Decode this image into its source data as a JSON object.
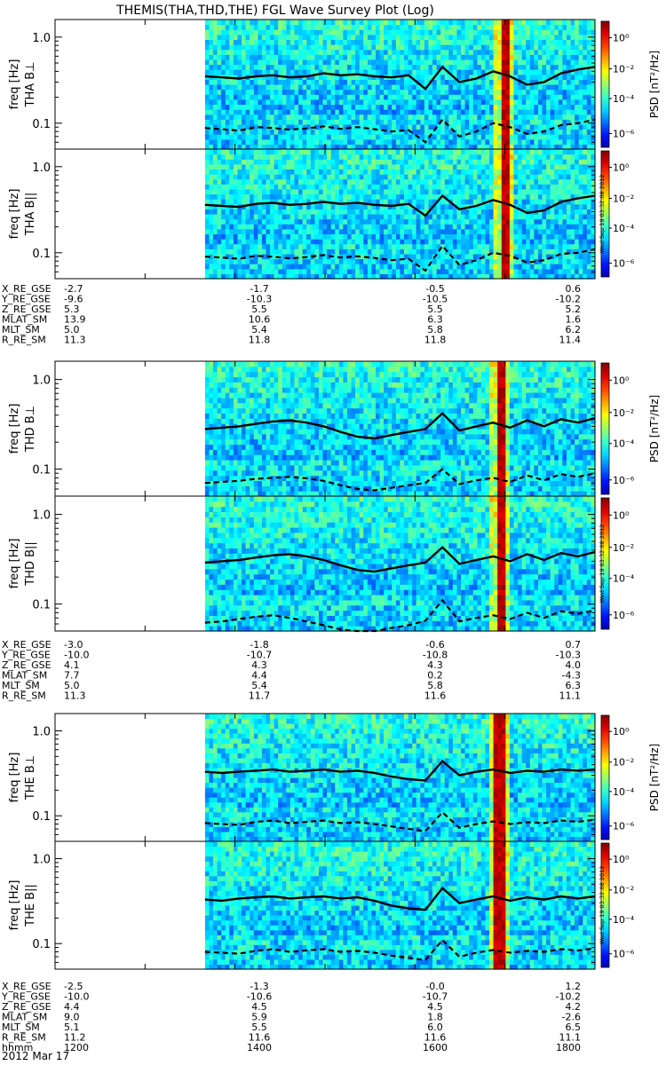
{
  "chart_data": {
    "type": "heatmap",
    "title": "THEMIS(THA,THD,THE) FGL Wave Survey Plot (Log)",
    "ylabel_unit": "freq [Hz]",
    "y_ticks": [
      "1.0",
      "0.1"
    ],
    "ylim": [
      0.05,
      1.6
    ],
    "colorbar_label": "PSD [nT²/Hz]",
    "colorbar_ticks": [
      "10⁰",
      "10⁻²",
      "10⁻⁴",
      "10⁻⁶"
    ],
    "panels": [
      {
        "label": "THA B⊥",
        "probe": "THA",
        "data_start_hhmm": 1340,
        "burst_hhmm": 1658,
        "solid_line_hz": [
          0.35,
          0.34,
          0.33,
          0.35,
          0.36,
          0.34,
          0.35,
          0.38,
          0.36,
          0.37,
          0.35,
          0.34,
          0.36,
          0.25,
          0.45,
          0.3,
          0.33,
          0.4,
          0.35,
          0.28,
          0.3,
          0.38,
          0.42,
          0.45
        ],
        "dashed_line_hz": [
          0.088,
          0.085,
          0.082,
          0.09,
          0.088,
          0.084,
          0.087,
          0.092,
          0.086,
          0.09,
          0.085,
          0.08,
          0.083,
          0.06,
          0.11,
          0.07,
          0.08,
          0.1,
          0.09,
          0.075,
          0.08,
          0.095,
          0.1,
          0.11
        ]
      },
      {
        "label": "THA B||",
        "probe": "THA",
        "data_start_hhmm": 1340,
        "burst_hhmm": 1658,
        "solid_line_hz": [
          0.36,
          0.35,
          0.34,
          0.37,
          0.38,
          0.36,
          0.37,
          0.39,
          0.37,
          0.38,
          0.36,
          0.35,
          0.37,
          0.27,
          0.46,
          0.32,
          0.35,
          0.41,
          0.36,
          0.29,
          0.31,
          0.39,
          0.43,
          0.46
        ],
        "dashed_line_hz": [
          0.09,
          0.088,
          0.085,
          0.092,
          0.09,
          0.086,
          0.089,
          0.094,
          0.088,
          0.091,
          0.087,
          0.082,
          0.085,
          0.062,
          0.12,
          0.072,
          0.082,
          0.1,
          0.092,
          0.077,
          0.082,
          0.097,
          0.1,
          0.11
        ]
      },
      {
        "label": "THD B⊥",
        "probe": "THD",
        "data_start_hhmm": 1340,
        "burst_hhmm": 1656,
        "solid_line_hz": [
          0.28,
          0.29,
          0.3,
          0.32,
          0.34,
          0.35,
          0.33,
          0.3,
          0.26,
          0.23,
          0.22,
          0.24,
          0.26,
          0.28,
          0.42,
          0.27,
          0.3,
          0.33,
          0.29,
          0.35,
          0.3,
          0.36,
          0.33,
          0.37
        ],
        "dashed_line_hz": [
          0.07,
          0.072,
          0.074,
          0.078,
          0.08,
          0.082,
          0.079,
          0.074,
          0.066,
          0.06,
          0.058,
          0.062,
          0.066,
          0.07,
          0.1,
          0.068,
          0.075,
          0.08,
          0.072,
          0.085,
          0.075,
          0.088,
          0.082,
          0.09
        ]
      },
      {
        "label": "THD B||",
        "probe": "THD",
        "data_start_hhmm": 1340,
        "burst_hhmm": 1656,
        "solid_line_hz": [
          0.29,
          0.3,
          0.31,
          0.33,
          0.35,
          0.36,
          0.34,
          0.31,
          0.27,
          0.24,
          0.23,
          0.25,
          0.27,
          0.29,
          0.43,
          0.28,
          0.31,
          0.34,
          0.3,
          0.36,
          0.31,
          0.37,
          0.34,
          0.38
        ],
        "dashed_line_hz": [
          0.062,
          0.064,
          0.068,
          0.072,
          0.075,
          0.07,
          0.064,
          0.058,
          0.052,
          0.05,
          0.05,
          0.054,
          0.058,
          0.065,
          0.11,
          0.064,
          0.07,
          0.075,
          0.068,
          0.08,
          0.07,
          0.083,
          0.078,
          0.085
        ]
      },
      {
        "label": "THE B⊥",
        "probe": "THE",
        "data_start_hhmm": 1340,
        "burst_hhmm": 1655,
        "solid_line_hz": [
          0.33,
          0.32,
          0.33,
          0.34,
          0.35,
          0.33,
          0.34,
          0.35,
          0.33,
          0.34,
          0.32,
          0.29,
          0.27,
          0.26,
          0.44,
          0.3,
          0.33,
          0.35,
          0.32,
          0.34,
          0.33,
          0.35,
          0.34,
          0.35
        ],
        "dashed_line_hz": [
          0.082,
          0.08,
          0.078,
          0.085,
          0.088,
          0.082,
          0.085,
          0.088,
          0.082,
          0.084,
          0.08,
          0.075,
          0.07,
          0.066,
          0.11,
          0.072,
          0.08,
          0.086,
          0.08,
          0.084,
          0.082,
          0.088,
          0.085,
          0.09
        ]
      },
      {
        "label": "THE B||",
        "probe": "THE",
        "data_start_hhmm": 1340,
        "burst_hhmm": 1655,
        "solid_line_hz": [
          0.33,
          0.32,
          0.34,
          0.35,
          0.36,
          0.34,
          0.35,
          0.36,
          0.34,
          0.35,
          0.32,
          0.28,
          0.26,
          0.25,
          0.45,
          0.3,
          0.33,
          0.36,
          0.32,
          0.35,
          0.33,
          0.36,
          0.34,
          0.36
        ],
        "dashed_line_hz": [
          0.08,
          0.078,
          0.076,
          0.082,
          0.086,
          0.08,
          0.083,
          0.086,
          0.08,
          0.082,
          0.078,
          0.072,
          0.068,
          0.064,
          0.11,
          0.07,
          0.078,
          0.084,
          0.078,
          0.082,
          0.08,
          0.086,
          0.083,
          0.088
        ]
      }
    ],
    "timestamp_stamp": "Wed Sep 19 03:32:08 2012",
    "orbit_tables": [
      {
        "rows": [
          {
            "name": "X_RE_GSE",
            "values": [
              "-2.7",
              "-1.7",
              "-0.5",
              "0.6"
            ]
          },
          {
            "name": "Y_RE_GSE",
            "values": [
              "-9.6",
              "-10.3",
              "-10.5",
              "-10.2"
            ]
          },
          {
            "name": "Z_RE_GSE",
            "values": [
              "5.3",
              "5.5",
              "5.5",
              "5.2"
            ]
          },
          {
            "name": "MLAT_SM",
            "values": [
              "13.9",
              "10.6",
              "6.3",
              "1.6"
            ]
          },
          {
            "name": "MLT_SM",
            "values": [
              "5.0",
              "5.4",
              "5.8",
              "6.2"
            ]
          },
          {
            "name": "R_RE_SM",
            "values": [
              "11.3",
              "11.8",
              "11.8",
              "11.4"
            ]
          }
        ]
      },
      {
        "rows": [
          {
            "name": "X_RE_GSE",
            "values": [
              "-3.0",
              "-1.8",
              "-0.6",
              "0.7"
            ]
          },
          {
            "name": "Y_RE_GSE",
            "values": [
              "-10.0",
              "-10.7",
              "-10.8",
              "-10.3"
            ]
          },
          {
            "name": "Z_RE_GSE",
            "values": [
              "4.1",
              "4.3",
              "4.3",
              "4.0"
            ]
          },
          {
            "name": "MLAT_SM",
            "values": [
              "7.7",
              "4.4",
              "0.2",
              "-4.3"
            ]
          },
          {
            "name": "MLT_SM",
            "values": [
              "5.0",
              "5.4",
              "5.8",
              "6.3"
            ]
          },
          {
            "name": "R_RE_SM",
            "values": [
              "11.3",
              "11.7",
              "11.6",
              "11.1"
            ]
          }
        ]
      },
      {
        "rows": [
          {
            "name": "X_RE_GSE",
            "values": [
              "-2.5",
              "-1.3",
              "-0.0",
              "1.2"
            ]
          },
          {
            "name": "Y_RE_GSE",
            "values": [
              "-10.0",
              "-10.6",
              "-10.7",
              "-10.2"
            ]
          },
          {
            "name": "Z_RE_GSE",
            "values": [
              "4.4",
              "4.5",
              "4.5",
              "4.2"
            ]
          },
          {
            "name": "MLAT_SM",
            "values": [
              "9.0",
              "5.9",
              "1.8",
              "-2.6"
            ]
          },
          {
            "name": "MLT_SM",
            "values": [
              "5.1",
              "5.5",
              "6.0",
              "6.5"
            ]
          },
          {
            "name": "R_RE_SM",
            "values": [
              "11.2",
              "11.6",
              "11.6",
              "11.1"
            ]
          },
          {
            "name": "hhmm",
            "values": [
              "1200",
              "1400",
              "1600",
              "1800"
            ]
          }
        ]
      }
    ],
    "date_label": "2012 Mar 17",
    "xlim_hhmm": [
      1200,
      1800
    ]
  }
}
